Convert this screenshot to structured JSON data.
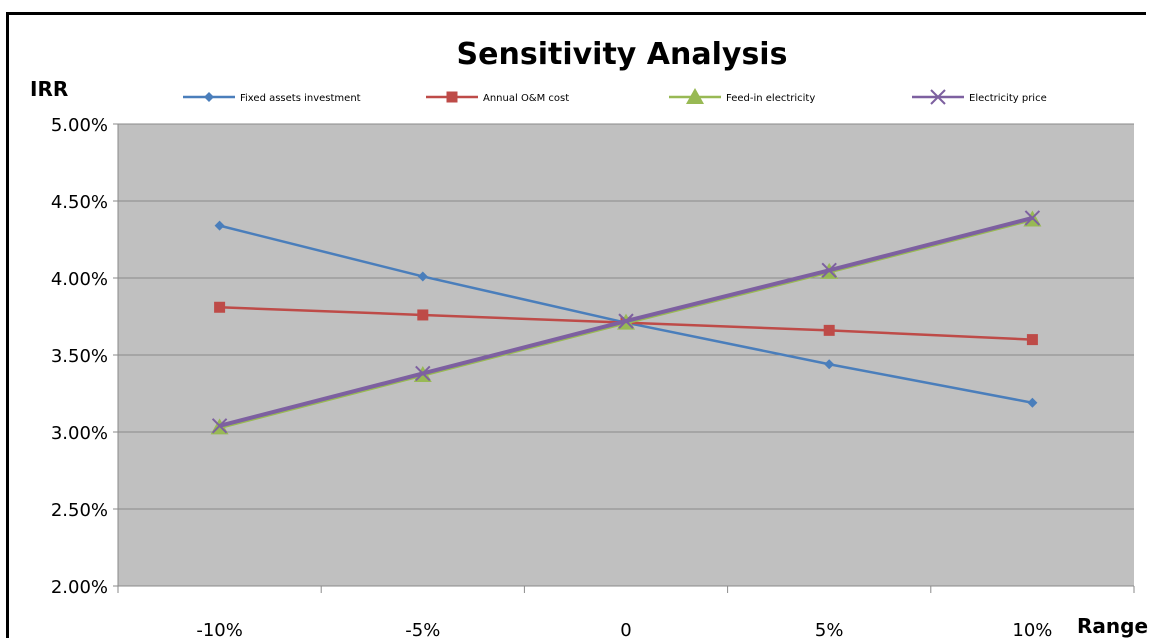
{
  "chart_data": {
    "type": "line",
    "title": "Sensitivity Analysis",
    "ylabel": "IRR",
    "xlabel": "Range",
    "categories": [
      "-10%",
      "-5%",
      "0",
      "5%",
      "10%"
    ],
    "ylim": [
      0.02,
      0.05
    ],
    "yticks": [
      "2.00%",
      "2.50%",
      "3.00%",
      "3.50%",
      "4.00%",
      "4.50%",
      "5.00%"
    ],
    "ytick_values": [
      0.02,
      0.025,
      0.03,
      0.035,
      0.04,
      0.045,
      0.05
    ],
    "grid": true,
    "legend_position": "top",
    "plot_background": "#c0c0c0",
    "series": [
      {
        "name": "Fixed assets investment",
        "color": "#4a7ebb",
        "marker": "diamond",
        "values": [
          0.0434,
          0.0401,
          0.0371,
          0.0344,
          0.0319
        ]
      },
      {
        "name": "Annual O&M cost",
        "color": "#be4b48",
        "marker": "square",
        "values": [
          0.0381,
          0.0376,
          0.0371,
          0.0366,
          0.036
        ]
      },
      {
        "name": "Feed-in electricity",
        "color": "#98b954",
        "marker": "triangle",
        "values": [
          0.0303,
          0.0337,
          0.0371,
          0.0404,
          0.0438
        ]
      },
      {
        "name": "Electricity price",
        "color": "#7d60a0",
        "marker": "x",
        "values": [
          0.0304,
          0.0338,
          0.0372,
          0.0405,
          0.0439
        ]
      }
    ]
  }
}
